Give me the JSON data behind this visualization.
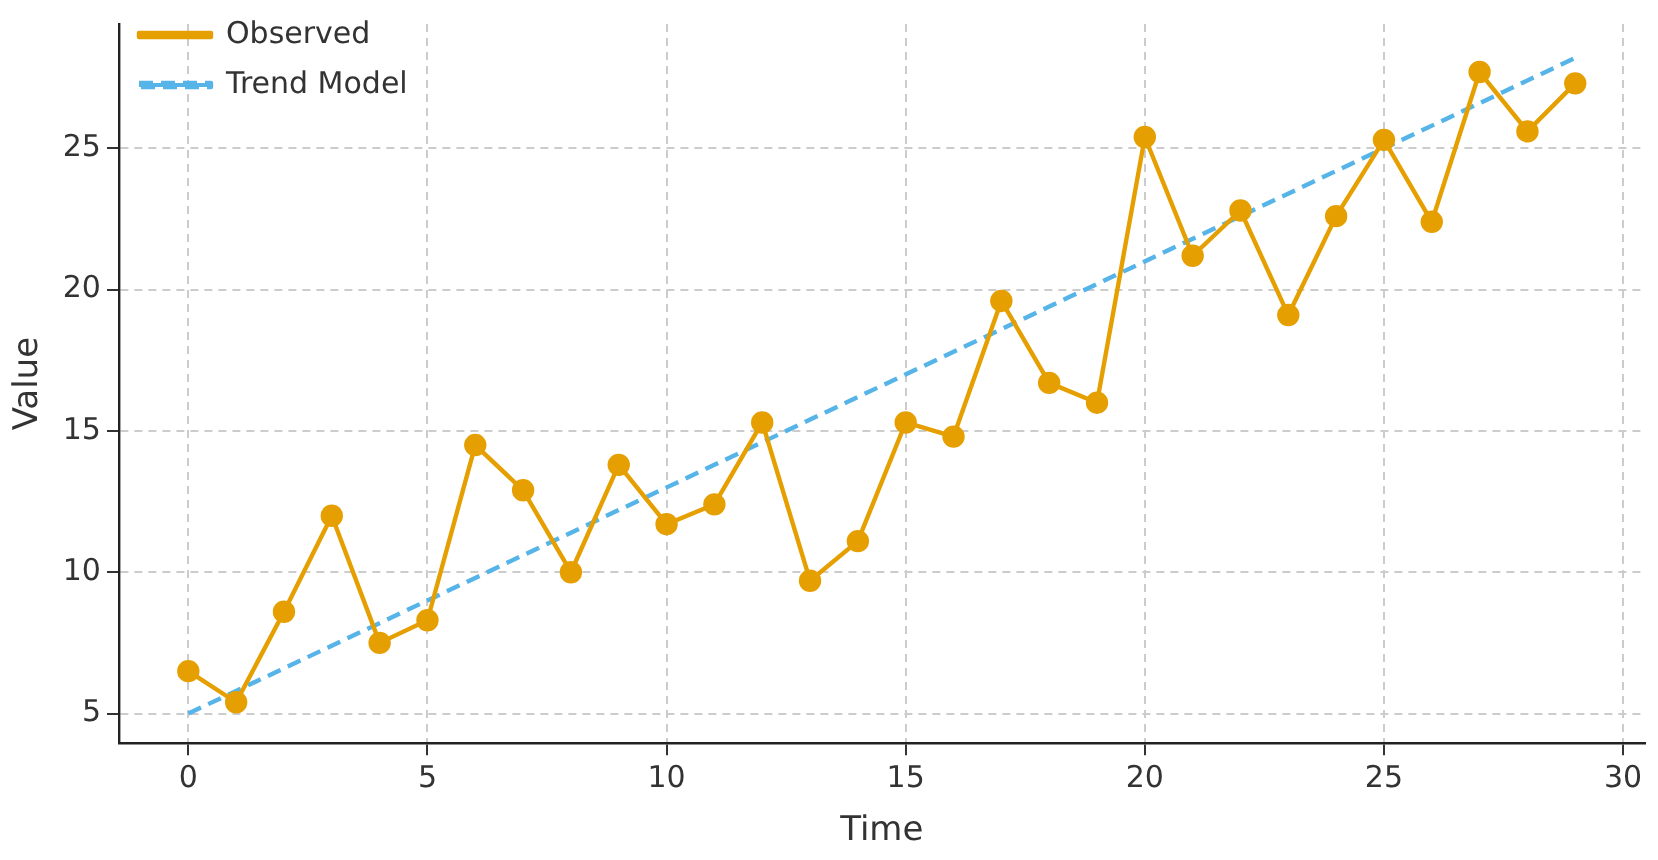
{
  "chart_data": {
    "type": "line",
    "xlabel": "Time",
    "ylabel": "Value",
    "xlim": [
      -1.45,
      30.45
    ],
    "xticks": [
      0,
      5,
      10,
      15,
      20,
      25,
      30
    ],
    "ylim": [
      3.95,
      29.4
    ],
    "yticks": [
      5,
      10,
      15,
      20,
      25
    ],
    "grid": true,
    "legend": "top left",
    "series": [
      {
        "name": "Observed",
        "color": "#e69f00",
        "marker": "circle",
        "line_style": "solid",
        "x": [
          0,
          1,
          2,
          3,
          4,
          5,
          6,
          7,
          8,
          9,
          10,
          11,
          12,
          13,
          14,
          15,
          16,
          17,
          18,
          19,
          20,
          21,
          22,
          23,
          24,
          25,
          26,
          27,
          28,
          29
        ],
        "values": [
          6.5,
          5.4,
          8.6,
          12.0,
          7.5,
          8.3,
          14.5,
          12.9,
          10.0,
          13.8,
          11.7,
          12.4,
          15.3,
          9.7,
          11.1,
          15.3,
          14.8,
          19.6,
          16.7,
          16.0,
          25.4,
          21.2,
          22.8,
          19.1,
          22.6,
          25.3,
          22.4,
          27.7,
          25.6,
          27.3
        ]
      },
      {
        "name": "Trend Model",
        "color": "#56b4e9",
        "marker": "none",
        "line_style": "dashed",
        "x": [
          0,
          29
        ],
        "values": [
          5.0,
          28.2
        ]
      }
    ]
  }
}
